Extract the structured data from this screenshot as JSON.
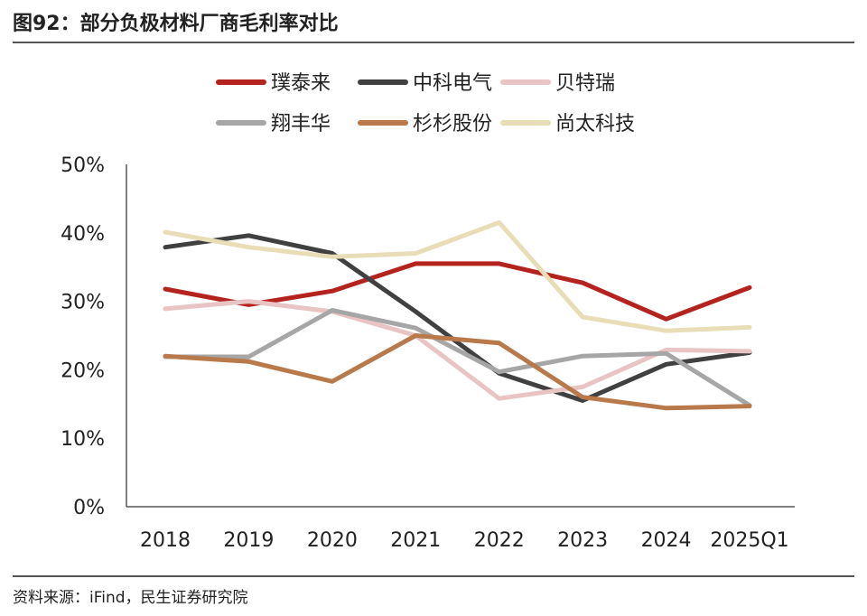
{
  "title": "图92：部分负极材料厂商毛利率对比",
  "source": "资料来源：iFind，民生证券研究院",
  "chart_data": {
    "type": "line",
    "categories": [
      "2018",
      "2019",
      "2020",
      "2021",
      "2022",
      "2023",
      "2024",
      "2025Q1"
    ],
    "ylim": [
      0,
      50
    ],
    "yticks": [
      "0%",
      "10%",
      "20%",
      "30%",
      "40%",
      "50%"
    ],
    "legend_position": "top",
    "grid": false,
    "series": [
      {
        "name": "璞泰来",
        "color": "#B5231F",
        "values": [
          31.8,
          29.5,
          31.5,
          35.5,
          35.5,
          32.7,
          27.4,
          32.0
        ]
      },
      {
        "name": "中科电气",
        "color": "#404040",
        "values": [
          37.9,
          39.6,
          37.0,
          28.5,
          19.5,
          15.5,
          20.8,
          22.5
        ]
      },
      {
        "name": "贝特瑞",
        "color": "#E8C4C4",
        "values": [
          28.9,
          30.0,
          28.5,
          25.0,
          15.8,
          17.5,
          22.9,
          22.7
        ]
      },
      {
        "name": "翔丰华",
        "color": "#A6A6A6",
        "values": [
          21.9,
          21.9,
          28.7,
          26.1,
          19.7,
          22.0,
          22.4,
          14.8
        ]
      },
      {
        "name": "杉杉股份",
        "color": "#B87A4B",
        "values": [
          22.0,
          21.2,
          18.3,
          25.0,
          23.9,
          16.0,
          14.4,
          14.7
        ]
      },
      {
        "name": "尚太科技",
        "color": "#E8DDB7",
        "values": [
          40.1,
          37.9,
          36.5,
          37.0,
          41.5,
          27.7,
          25.7,
          26.2
        ]
      }
    ]
  }
}
